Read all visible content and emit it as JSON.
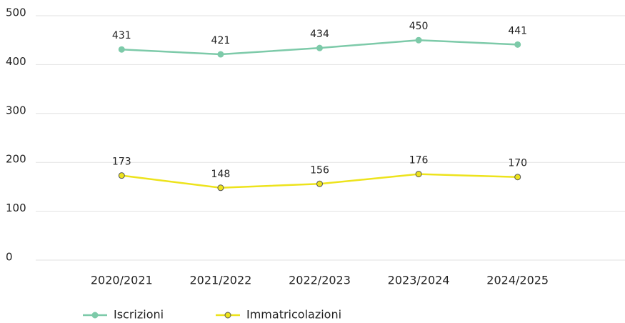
{
  "chart_data": {
    "type": "line",
    "categories": [
      "2020/2021",
      "2021/2022",
      "2022/2023",
      "2023/2024",
      "2024/2025"
    ],
    "series": [
      {
        "name": "Iscrizioni",
        "color": "#7dcaa9",
        "values": [
          431,
          421,
          434,
          450,
          441
        ]
      },
      {
        "name": "Immatricolazioni",
        "color": "#ede31c",
        "values": [
          173,
          148,
          156,
          176,
          170
        ]
      }
    ],
    "ylim": [
      0,
      500
    ],
    "yticks": [
      0,
      100,
      200,
      300,
      400,
      500
    ],
    "grid": true,
    "legend": "bottom"
  }
}
